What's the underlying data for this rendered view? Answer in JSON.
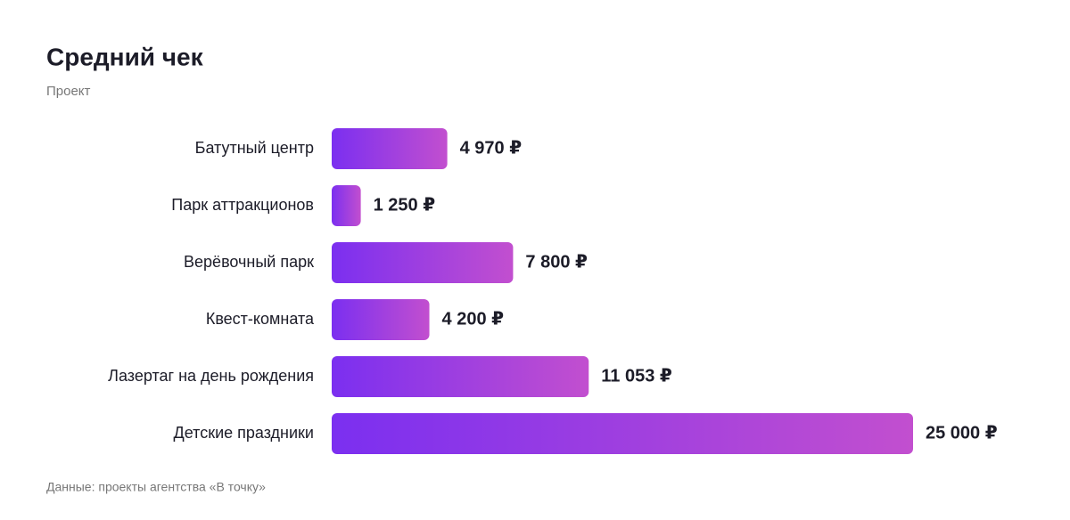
{
  "chart_data": {
    "type": "bar",
    "orientation": "horizontal",
    "title": "Средний чек",
    "subtitle": "Проект",
    "categories": [
      "Батутный центр",
      "Парк аттракционов",
      "Верёвочный парк",
      "Квест-комната",
      "Лазертаг на день рождения",
      "Детские праздники"
    ],
    "values": [
      4970,
      1250,
      7800,
      4200,
      11053,
      25000
    ],
    "value_labels": [
      "4 970 ₽",
      "1 250 ₽",
      "7 800 ₽",
      "4 200 ₽",
      "11 053 ₽",
      "25 000 ₽"
    ],
    "color": [
      "#7b2ff0",
      "#c24fcf"
    ],
    "source": "Данные: проекты агентства «В точку»"
  }
}
